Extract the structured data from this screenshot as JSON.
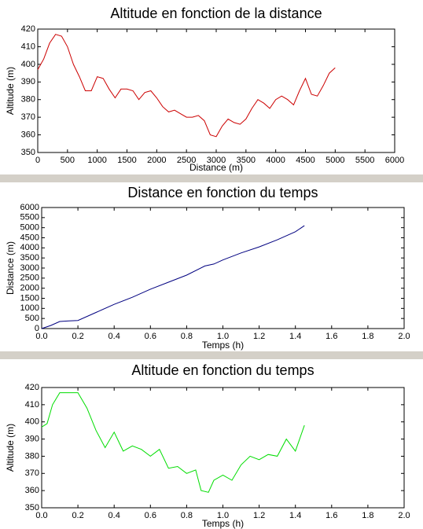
{
  "chart_data": [
    {
      "type": "line",
      "title": "Altitude en fonction de la distance",
      "xlabel": "Distance (m)",
      "ylabel": "Altitude (m)",
      "x": [
        0,
        100,
        200,
        300,
        400,
        500,
        600,
        700,
        800,
        900,
        1000,
        1100,
        1200,
        1300,
        1400,
        1500,
        1600,
        1700,
        1800,
        1900,
        2000,
        2100,
        2200,
        2300,
        2400,
        2500,
        2600,
        2700,
        2800,
        2900,
        3000,
        3100,
        3200,
        3300,
        3400,
        3500,
        3600,
        3700,
        3800,
        3900,
        4000,
        4100,
        4200,
        4300,
        4400,
        4500,
        4600,
        4700,
        4800,
        4900,
        5000
      ],
      "series": [
        {
          "color": "#cc0000",
          "values": [
            397,
            403,
            412,
            417,
            416,
            410,
            400,
            393,
            385,
            385,
            393,
            392,
            386,
            381,
            386,
            386,
            385,
            380,
            384,
            385,
            381,
            376,
            373,
            374,
            372,
            370,
            370,
            371,
            368,
            360,
            359,
            365,
            369,
            367,
            366,
            369,
            375,
            380,
            378,
            375,
            380,
            382,
            380,
            377,
            385,
            392,
            383,
            382,
            388,
            395,
            398
          ]
        }
      ],
      "xlim": [
        0,
        6000
      ],
      "xticks": [
        0,
        500,
        1000,
        1500,
        2000,
        2500,
        3000,
        3500,
        4000,
        4500,
        5000,
        5500,
        6000
      ],
      "ylim": [
        350,
        420
      ],
      "yticks": [
        350,
        360,
        370,
        380,
        390,
        400,
        410,
        420
      ]
    },
    {
      "type": "line",
      "title": "Distance en fonction du temps",
      "xlabel": "Temps (h)",
      "ylabel": "Distance (m)",
      "x": [
        0,
        0.05,
        0.1,
        0.15,
        0.2,
        0.3,
        0.4,
        0.5,
        0.6,
        0.7,
        0.8,
        0.9,
        0.95,
        1.0,
        1.1,
        1.2,
        1.3,
        1.4,
        1.45
      ],
      "series": [
        {
          "color": "#000080",
          "values": [
            0,
            150,
            350,
            380,
            400,
            800,
            1200,
            1550,
            1950,
            2300,
            2650,
            3100,
            3200,
            3400,
            3750,
            4050,
            4400,
            4800,
            5100
          ]
        }
      ],
      "xlim": [
        0,
        2
      ],
      "xticks": [
        {
          "value": 0,
          "label": "0.0"
        },
        0.2,
        0.4,
        0.6,
        0.8,
        {
          "value": 1,
          "label": "1.0"
        },
        1.2,
        1.4,
        1.6,
        1.8,
        {
          "value": 2,
          "label": "2.0"
        }
      ],
      "ylim": [
        0,
        6000
      ],
      "yticks": [
        0,
        500,
        1000,
        1500,
        2000,
        2500,
        3000,
        3500,
        4000,
        4500,
        5000,
        5500,
        6000
      ]
    },
    {
      "type": "line",
      "title": "Altitude en fonction du temps",
      "xlabel": "Temps (h)",
      "ylabel": "Altitude (m)",
      "x": [
        0,
        0.03,
        0.06,
        0.1,
        0.15,
        0.2,
        0.25,
        0.3,
        0.35,
        0.4,
        0.45,
        0.5,
        0.55,
        0.6,
        0.65,
        0.7,
        0.75,
        0.8,
        0.85,
        0.88,
        0.92,
        0.95,
        1.0,
        1.05,
        1.1,
        1.15,
        1.2,
        1.25,
        1.3,
        1.35,
        1.4,
        1.45
      ],
      "series": [
        {
          "color": "#00dd00",
          "values": [
            397,
            399,
            410,
            417,
            417,
            417,
            408,
            395,
            385,
            394,
            383,
            386,
            384,
            380,
            384,
            373,
            374,
            370,
            372,
            360,
            359,
            366,
            369,
            366,
            375,
            380,
            378,
            381,
            380,
            390,
            383,
            398
          ]
        }
      ],
      "xlim": [
        0,
        2
      ],
      "xticks": [
        {
          "value": 0,
          "label": "0.0"
        },
        0.2,
        0.4,
        0.6,
        0.8,
        {
          "value": 1,
          "label": "1.0"
        },
        1.2,
        1.4,
        1.6,
        1.8,
        {
          "value": 2,
          "label": "2.0"
        }
      ],
      "ylim": [
        350,
        420
      ],
      "yticks": [
        350,
        360,
        370,
        380,
        390,
        400,
        410,
        420
      ]
    }
  ]
}
